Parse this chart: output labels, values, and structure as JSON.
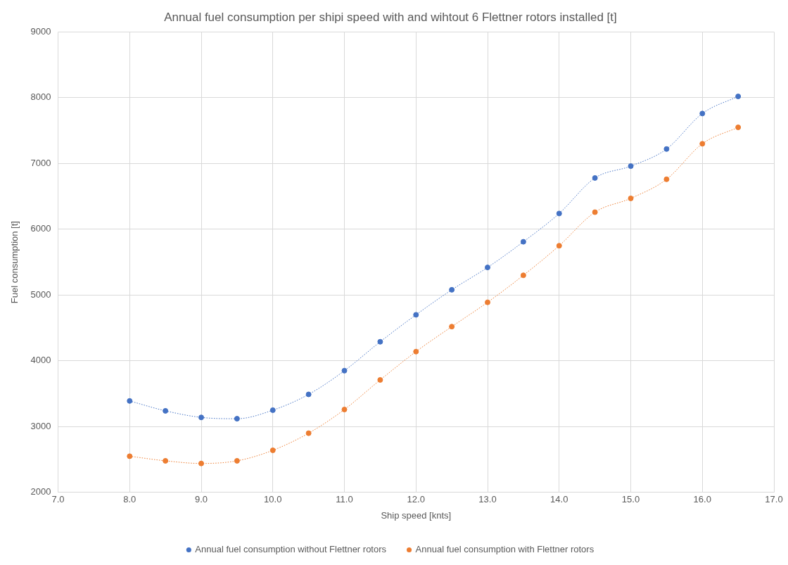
{
  "chart_data": {
    "type": "line",
    "title": "Annual fuel consumption per shipi speed with and wihtout 6 Flettner rotors installed [t]",
    "xlabel": "Ship speed [knts]",
    "ylabel": "Fuel consumption [t]",
    "x": [
      8.0,
      8.5,
      9.0,
      9.5,
      10.0,
      10.5,
      11.0,
      11.5,
      12.0,
      12.5,
      13.0,
      13.5,
      14.0,
      14.5,
      15.0,
      15.5,
      16.0,
      16.5
    ],
    "series": [
      {
        "name": "Annual fuel consumption without Flettner rotors",
        "color": "#4472c4",
        "values": [
          3390,
          3240,
          3140,
          3120,
          3250,
          3490,
          3850,
          4290,
          4700,
          5080,
          5420,
          5810,
          6240,
          6780,
          6960,
          7220,
          7760,
          8020
        ]
      },
      {
        "name": "Annual fuel consumption with Flettner rotors",
        "color": "#ed7d31",
        "values": [
          2550,
          2480,
          2440,
          2480,
          2640,
          2900,
          3260,
          3710,
          4140,
          4520,
          4890,
          5300,
          5750,
          6260,
          6470,
          6760,
          7300,
          7550
        ]
      }
    ],
    "xlim": [
      7.0,
      17.0
    ],
    "xticks": [
      {
        "value": 7,
        "label": "7.0"
      },
      {
        "value": 8,
        "label": "8.0"
      },
      {
        "value": 9,
        "label": "9.0"
      },
      {
        "value": 10,
        "label": "10.0"
      },
      {
        "value": 11,
        "label": "11.0"
      },
      {
        "value": 12,
        "label": "12.0"
      },
      {
        "value": 13,
        "label": "13.0"
      },
      {
        "value": 14,
        "label": "14.0"
      },
      {
        "value": 15,
        "label": "15.0"
      },
      {
        "value": 16,
        "label": "16.0"
      },
      {
        "value": 17,
        "label": "17.0"
      }
    ],
    "ylim": [
      2000,
      9000
    ],
    "yticks": [
      2000,
      3000,
      4000,
      5000,
      6000,
      7000,
      8000,
      9000
    ],
    "grid": true,
    "legend": "bottom",
    "marker": "circle",
    "line_style": "dotted"
  }
}
